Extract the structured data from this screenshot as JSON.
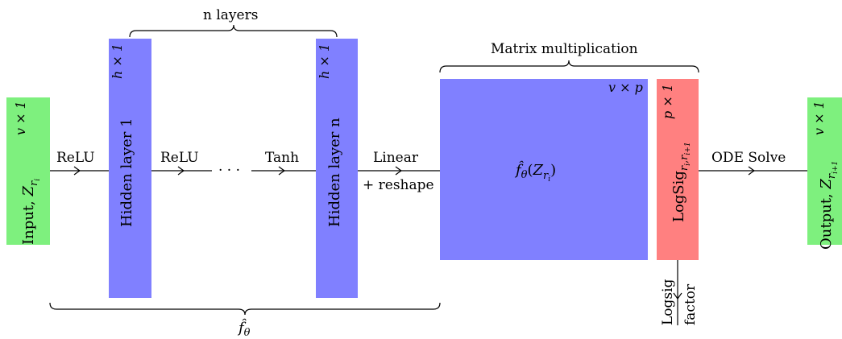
{
  "blocks": {
    "input": {
      "label": "Input, ",
      "var": "Z",
      "sub": "r",
      "subsub": "i",
      "dim": "v × 1",
      "color": "#7ef07e"
    },
    "hidden1": {
      "label": "Hidden layer 1",
      "dim": "h × 1",
      "color": "#8080ff"
    },
    "hiddenn": {
      "label": "Hidden layer n",
      "dim": "h × 1",
      "color": "#8080ff"
    },
    "matrix": {
      "func": "f̂",
      "theta": "θ",
      "var": "Z",
      "sub": "r",
      "subsub": "i",
      "dim": "v × p",
      "color": "#8080ff"
    },
    "logsig": {
      "label": "LogSig",
      "sub": "r",
      "subsub1": "i",
      "subsub2": "i+1",
      "dim": "p × 1",
      "color": "#ff8080"
    },
    "output": {
      "label": "Output, ",
      "var": "Z",
      "sub": "r",
      "subsub": "i+1",
      "dim": "v × 1",
      "color": "#7ef07e"
    }
  },
  "edges": {
    "relu1": "ReLU",
    "relu2": "ReLU",
    "dots": "· · ·",
    "tanh": "Tanh",
    "linear_line1": "Linear",
    "linear_line2": "+ reshape",
    "ode": "ODE Solve",
    "logsig_factor_line1": "Logsig",
    "logsig_factor_line2": "factor"
  },
  "braces": {
    "n_layers": "n layers",
    "matrix_mult": "Matrix multiplication",
    "f_theta": "f̂",
    "f_theta_sub": "θ"
  }
}
